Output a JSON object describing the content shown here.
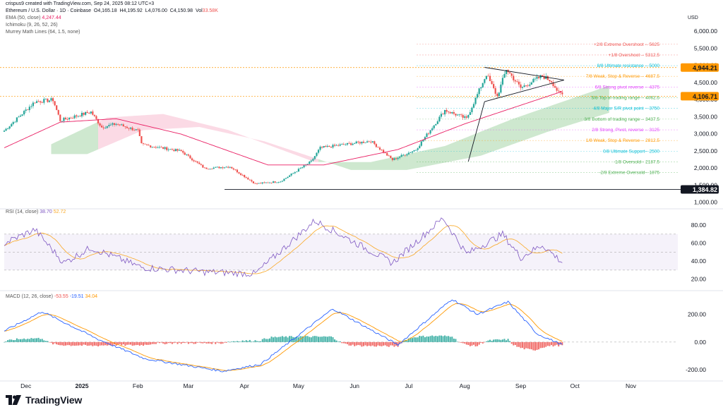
{
  "attribution": "crispus9 created with TradingView.com, Sep 24, 2025 08:12 UTC+3",
  "header": {
    "title": "Ethereum / U.S. Dollar · 1D · Coinbase",
    "o_label": "O",
    "o": "4,165.18",
    "h_label": "H",
    "h": "4,195.92",
    "l_label": "L",
    "l": "4,076.00",
    "c_label": "C",
    "c": "4,150.98",
    "vol_label": "Vol",
    "vol": "33.58K",
    "ema_label": "EMA (50, close)",
    "ema_value": "4,247.44",
    "ichimoku_label": "Ichimoku (9, 26, 52, 26)",
    "murrey_label": "Murrey Math Lines (64, 1.5, none)"
  },
  "currency_label": "USD",
  "logo_text": "TradingView",
  "colors": {
    "up": "#26a69a",
    "down": "#ef5350",
    "ema": "#e91e63",
    "rsi": "#7e57c2",
    "rsi_ma": "#f9a825",
    "macd": "#2962ff",
    "signal": "#ff9800",
    "cloud_bull": "#a5d6a7",
    "cloud_bear": "#f8bbd0",
    "price_tag": "#ff9800",
    "support_tag": "#131722"
  },
  "chart_data": [
    {
      "type": "candlestick",
      "title": "Ethereum / U.S. Dollar · 1D · Coinbase",
      "ylabel": "USD",
      "ylim": [
        900,
        6300
      ],
      "y_ticks": [
        "6,000.00",
        "5,500.00",
        "5,000.00",
        "4,500.00",
        "4,000.00",
        "3,500.00",
        "3,000.00",
        "2,500.00",
        "2,000.00",
        "1,500.00",
        "1,000.00"
      ],
      "x_ticks": [
        "Dec",
        "2025",
        "Feb",
        "Mar",
        "Apr",
        "May",
        "Jun",
        "Jul",
        "Aug",
        "Sep",
        "Oct",
        "Nov"
      ],
      "price_keypoints": [
        {
          "date": "2024-11-19",
          "close": 3100
        },
        {
          "date": "2024-12-06",
          "close": 3950
        },
        {
          "date": "2024-12-16",
          "close": 4000
        },
        {
          "date": "2024-12-20",
          "close": 3400
        },
        {
          "date": "2025-01-06",
          "close": 3650
        },
        {
          "date": "2025-01-12",
          "close": 3200
        },
        {
          "date": "2025-01-20",
          "close": 3300
        },
        {
          "date": "2025-02-01",
          "close": 3100
        },
        {
          "date": "2025-02-03",
          "close": 2700
        },
        {
          "date": "2025-02-25",
          "close": 2500
        },
        {
          "date": "2025-03-10",
          "close": 2000
        },
        {
          "date": "2025-03-24",
          "close": 2050
        },
        {
          "date": "2025-04-07",
          "close": 1550
        },
        {
          "date": "2025-04-21",
          "close": 1620
        },
        {
          "date": "2025-05-08",
          "close": 2200
        },
        {
          "date": "2025-05-13",
          "close": 2600
        },
        {
          "date": "2025-06-10",
          "close": 2800
        },
        {
          "date": "2025-06-22",
          "close": 2250
        },
        {
          "date": "2025-07-05",
          "close": 2550
        },
        {
          "date": "2025-07-21",
          "close": 3700
        },
        {
          "date": "2025-08-02",
          "close": 3450
        },
        {
          "date": "2025-08-13",
          "close": 4750
        },
        {
          "date": "2025-08-19",
          "close": 4100
        },
        {
          "date": "2025-08-24",
          "close": 4900
        },
        {
          "date": "2025-09-01",
          "close": 4350
        },
        {
          "date": "2025-09-13",
          "close": 4700
        },
        {
          "date": "2025-09-18",
          "close": 4550
        },
        {
          "date": "2025-09-22",
          "close": 4200
        },
        {
          "date": "2025-09-24",
          "close": 4150.98
        }
      ],
      "ema50": {
        "name": "EMA (50, close)",
        "value": 4247.44,
        "keypoints": [
          {
            "date": "2024-11-19",
            "value": 2600
          },
          {
            "date": "2024-12-20",
            "value": 3350
          },
          {
            "date": "2025-01-20",
            "value": 3450
          },
          {
            "date": "2025-02-25",
            "value": 3000
          },
          {
            "date": "2025-04-14",
            "value": 2100
          },
          {
            "date": "2025-05-15",
            "value": 2100
          },
          {
            "date": "2025-06-25",
            "value": 2550
          },
          {
            "date": "2025-08-01",
            "value": 3300
          },
          {
            "date": "2025-09-24",
            "value": 4247
          }
        ]
      },
      "murrey_lines": [
        {
          "label": "+2/8 Extreme Overshoot --",
          "value": "5625",
          "price": 5625,
          "color": "#ef5350"
        },
        {
          "label": "+1/8 Overshoot --",
          "value": "5312.5",
          "price": 5312.5,
          "color": "#ef5350"
        },
        {
          "label": "8/8 Ultimate resistance --",
          "value": "5000",
          "price": 5000,
          "color": "#00bcd4"
        },
        {
          "label": "7/8 Weak, Stop & Reverse --",
          "value": "4687.5",
          "price": 4687.5,
          "color": "#ff9800"
        },
        {
          "label": "6/8 Strong pivot reverse --",
          "value": "4375",
          "price": 4375,
          "color": "#e040fb"
        },
        {
          "label": "5/8 Top of trading range --",
          "value": "4062.5",
          "price": 4062.5,
          "color": "#4caf50"
        },
        {
          "label": "4/8 Major S/R pivot point --",
          "value": "3750",
          "price": 3750,
          "color": "#00bcd4"
        },
        {
          "label": "3/8 Bottom of trading range --",
          "value": "3437.5",
          "price": 3437.5,
          "color": "#4caf50"
        },
        {
          "label": "2/8 Strong, Pivot, reverse --",
          "value": "3125",
          "price": 3125,
          "color": "#e040fb"
        },
        {
          "label": "1/8 Weak, Stop & Reverse --",
          "value": "2812.5",
          "price": 2812.5,
          "color": "#ff9800"
        },
        {
          "label": "0/8 Ultimate Support--",
          "value": "2500",
          "price": 2500,
          "color": "#00bcd4"
        },
        {
          "label": "-1/8 Oversold--",
          "value": "2187.5",
          "price": 2187.5,
          "color": "#4caf50"
        },
        {
          "label": "-2/8 Extreme Oversold--",
          "value": "1875",
          "price": 1875,
          "color": "#4caf50"
        }
      ],
      "price_tags": [
        {
          "value": "4,944.21",
          "price": 4944.21,
          "color": "#ff9800"
        },
        {
          "value": "4,106.71",
          "price": 4106.71,
          "color": "#ff9800"
        },
        {
          "value": "1,384.82",
          "price": 1384.82,
          "color": "#131722"
        }
      ],
      "annotations": {
        "support_line": 1384.82,
        "triangle_upper": [
          {
            "date": "2025-08-12",
            "price": 4950
          },
          {
            "date": "2025-09-25",
            "price": 4580
          }
        ],
        "triangle_lower": [
          {
            "date": "2025-08-12",
            "price": 3950
          },
          {
            "date": "2025-09-25",
            "price": 4580
          }
        ],
        "trend_line": [
          {
            "date": "2025-08-03",
            "price": 2200
          },
          {
            "date": "2025-08-12",
            "price": 3950
          }
        ]
      }
    },
    {
      "type": "line",
      "title": "RSI (14, close)",
      "ylim": [
        15,
        95
      ],
      "y_ticks": [
        "80.00",
        "60.00",
        "40.00",
        "20.00"
      ],
      "bands": [
        30,
        50,
        70
      ],
      "series": [
        {
          "name": "RSI",
          "value": "38.70",
          "keypoints": [
            {
              "date": "2024-11-19",
              "value": 60
            },
            {
              "date": "2024-12-06",
              "value": 75
            },
            {
              "date": "2024-12-22",
              "value": 38
            },
            {
              "date": "2025-01-06",
              "value": 55
            },
            {
              "date": "2025-02-03",
              "value": 33
            },
            {
              "date": "2025-03-10",
              "value": 28
            },
            {
              "date": "2025-04-07",
              "value": 26
            },
            {
              "date": "2025-05-10",
              "value": 85
            },
            {
              "date": "2025-06-22",
              "value": 38
            },
            {
              "date": "2025-07-20",
              "value": 88
            },
            {
              "date": "2025-08-02",
              "value": 48
            },
            {
              "date": "2025-08-22",
              "value": 70
            },
            {
              "date": "2025-09-01",
              "value": 44
            },
            {
              "date": "2025-09-13",
              "value": 58
            },
            {
              "date": "2025-09-24",
              "value": 38.7
            }
          ]
        },
        {
          "name": "RSI MA",
          "value": "52.72"
        }
      ]
    },
    {
      "type": "bar",
      "title": "MACD (12, 26, close)",
      "ylim": [
        -260,
        330
      ],
      "y_ticks": [
        "200.00",
        "0.00",
        "-200.00"
      ],
      "series": [
        {
          "name": "Histogram",
          "value": "-53.55"
        },
        {
          "name": "MACD",
          "value": "-19.51",
          "keypoints": [
            {
              "date": "2024-11-19",
              "value": 80
            },
            {
              "date": "2024-12-10",
              "value": 220
            },
            {
              "date": "2025-01-10",
              "value": 20
            },
            {
              "date": "2025-02-05",
              "value": -120
            },
            {
              "date": "2025-03-20",
              "value": -210
            },
            {
              "date": "2025-04-10",
              "value": -160
            },
            {
              "date": "2025-05-20",
              "value": 240
            },
            {
              "date": "2025-06-25",
              "value": -20
            },
            {
              "date": "2025-07-25",
              "value": 310
            },
            {
              "date": "2025-08-08",
              "value": 200
            },
            {
              "date": "2025-08-25",
              "value": 290
            },
            {
              "date": "2025-09-10",
              "value": 60
            },
            {
              "date": "2025-09-24",
              "value": -19.51
            }
          ]
        },
        {
          "name": "Signal",
          "value": "34.04"
        }
      ]
    }
  ]
}
